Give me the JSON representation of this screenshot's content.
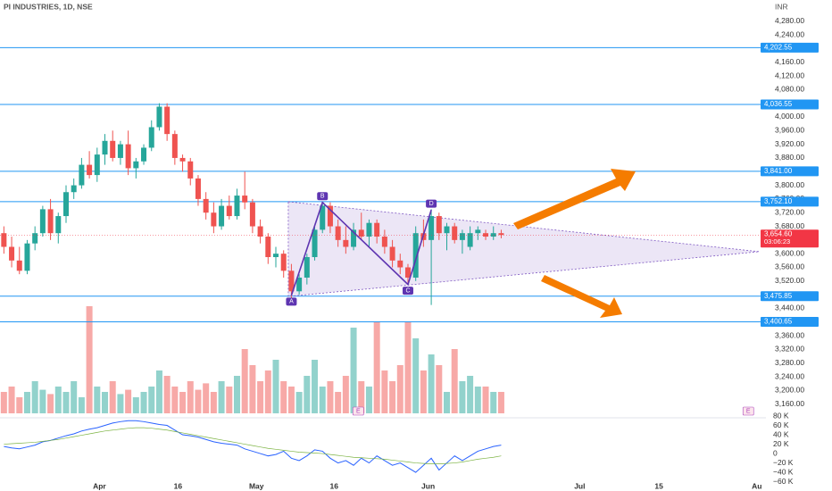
{
  "header": {
    "title": "PI INDUSTRIES, 1D, NSE",
    "currency": "INR"
  },
  "chart_data": {
    "type": "candlestick",
    "up_color": "#26a69a",
    "down_color": "#ef5350",
    "xlim": [
      -0.5,
      98.3
    ],
    "ylim": [
      3120,
      4342
    ],
    "xticks": [
      {
        "value": 12.3,
        "label": "Apr"
      },
      {
        "value": 22.4,
        "label": "16"
      },
      {
        "value": 32.5,
        "label": "May"
      },
      {
        "value": 42.5,
        "label": "16"
      },
      {
        "value": 54.6,
        "label": "Jun"
      },
      {
        "value": 74.1,
        "label": "Jul"
      },
      {
        "value": 84.3,
        "label": "15"
      },
      {
        "value": 96.9,
        "label": "Au"
      }
    ],
    "yticks": [
      {
        "value": 4280,
        "label": "4,280.00"
      },
      {
        "value": 4240,
        "label": "4,240.00"
      },
      {
        "value": 4160,
        "label": "4,160.00"
      },
      {
        "value": 4120,
        "label": "4,120.00"
      },
      {
        "value": 4080,
        "label": "4,080.00"
      },
      {
        "value": 4000,
        "label": "4,000.00"
      },
      {
        "value": 3960,
        "label": "3,960.00"
      },
      {
        "value": 3920,
        "label": "3,920.00"
      },
      {
        "value": 3880,
        "label": "3,880.00"
      },
      {
        "value": 3800,
        "label": "3,800.00"
      },
      {
        "value": 3760,
        "label": "3,760.00"
      },
      {
        "value": 3720,
        "label": "3,720.00"
      },
      {
        "value": 3680,
        "label": "3,680.00"
      },
      {
        "value": 3600,
        "label": "3,600.00"
      },
      {
        "value": 3560,
        "label": "3,560.00"
      },
      {
        "value": 3520,
        "label": "3,520.00"
      },
      {
        "value": 3440,
        "label": "3,440.00"
      },
      {
        "value": 3360,
        "label": "3,360.00"
      },
      {
        "value": 3320,
        "label": "3,320.00"
      },
      {
        "value": 3280,
        "label": "3,280.00"
      },
      {
        "value": 3240,
        "label": "3,240.00"
      },
      {
        "value": 3200,
        "label": "3,200.00"
      },
      {
        "value": 3160,
        "label": "3,160.00"
      }
    ],
    "levels": [
      {
        "value": 4202.55,
        "label": "4,202.55"
      },
      {
        "value": 4036.55,
        "label": "4,036.55"
      },
      {
        "value": 3841.0,
        "label": "3,841.00"
      },
      {
        "value": 3752.1,
        "label": "3,752.10"
      },
      {
        "value": 3475.85,
        "label": "3,475.85"
      },
      {
        "value": 3400.65,
        "label": "3,400.65"
      }
    ],
    "level_color": "#2196f3",
    "last": {
      "value": 3654.6,
      "label": "3,654.60",
      "countdown": "03:06:23",
      "color": "#f23645"
    },
    "x": [
      0,
      1,
      2,
      3,
      4,
      5,
      6,
      7,
      8,
      9,
      10,
      11,
      12,
      13,
      14,
      15,
      16,
      17,
      18,
      19,
      20,
      21,
      22,
      23,
      24,
      25,
      26,
      27,
      28,
      29,
      30,
      31,
      32,
      33,
      34,
      35,
      36,
      37,
      38,
      39,
      40,
      41,
      42,
      43,
      44,
      45,
      46,
      47,
      48,
      49,
      50,
      51,
      52,
      53,
      54,
      55,
      56,
      57,
      58,
      59,
      60,
      61,
      62,
      63,
      64
    ],
    "ohlc": [
      [
        3660,
        3680,
        3600,
        3620
      ],
      [
        3620,
        3650,
        3560,
        3580
      ],
      [
        3580,
        3620,
        3540,
        3550
      ],
      [
        3550,
        3640,
        3540,
        3630
      ],
      [
        3630,
        3680,
        3610,
        3660
      ],
      [
        3660,
        3740,
        3650,
        3730
      ],
      [
        3730,
        3760,
        3640,
        3660
      ],
      [
        3660,
        3720,
        3630,
        3710
      ],
      [
        3710,
        3800,
        3690,
        3780
      ],
      [
        3780,
        3820,
        3760,
        3800
      ],
      [
        3800,
        3880,
        3790,
        3860
      ],
      [
        3860,
        3900,
        3820,
        3830
      ],
      [
        3830,
        3910,
        3810,
        3890
      ],
      [
        3890,
        3950,
        3860,
        3930
      ],
      [
        3930,
        3960,
        3870,
        3880
      ],
      [
        3880,
        3930,
        3860,
        3920
      ],
      [
        3920,
        3960,
        3830,
        3850
      ],
      [
        3850,
        3880,
        3820,
        3870
      ],
      [
        3870,
        3920,
        3860,
        3910
      ],
      [
        3910,
        3990,
        3900,
        3970
      ],
      [
        3970,
        4040,
        3960,
        4030
      ],
      [
        4030,
        4040,
        3930,
        3950
      ],
      [
        3950,
        3960,
        3860,
        3880
      ],
      [
        3880,
        3890,
        3840,
        3870
      ],
      [
        3870,
        3880,
        3800,
        3820
      ],
      [
        3820,
        3830,
        3740,
        3760
      ],
      [
        3760,
        3780,
        3700,
        3720
      ],
      [
        3720,
        3750,
        3660,
        3680
      ],
      [
        3680,
        3760,
        3670,
        3740
      ],
      [
        3740,
        3770,
        3700,
        3710
      ],
      [
        3710,
        3790,
        3700,
        3770
      ],
      [
        3770,
        3840,
        3730,
        3750
      ],
      [
        3750,
        3760,
        3660,
        3680
      ],
      [
        3680,
        3700,
        3630,
        3650
      ],
      [
        3650,
        3660,
        3570,
        3590
      ],
      [
        3590,
        3620,
        3560,
        3600
      ],
      [
        3600,
        3610,
        3530,
        3550
      ],
      [
        3550,
        3570,
        3470,
        3490
      ],
      [
        3490,
        3540,
        3480,
        3530
      ],
      [
        3530,
        3600,
        3510,
        3590
      ],
      [
        3590,
        3680,
        3580,
        3670
      ],
      [
        3670,
        3750,
        3660,
        3740
      ],
      [
        3740,
        3750,
        3660,
        3680
      ],
      [
        3680,
        3700,
        3620,
        3640
      ],
      [
        3640,
        3680,
        3600,
        3620
      ],
      [
        3620,
        3690,
        3610,
        3670
      ],
      [
        3670,
        3720,
        3640,
        3650
      ],
      [
        3650,
        3700,
        3620,
        3690
      ],
      [
        3690,
        3700,
        3630,
        3650
      ],
      [
        3650,
        3670,
        3600,
        3620
      ],
      [
        3620,
        3640,
        3560,
        3580
      ],
      [
        3580,
        3600,
        3540,
        3560
      ],
      [
        3560,
        3570,
        3510,
        3530
      ],
      [
        3530,
        3680,
        3520,
        3660
      ],
      [
        3660,
        3700,
        3620,
        3640
      ],
      [
        3640,
        3730,
        3450,
        3710
      ],
      [
        3710,
        3720,
        3640,
        3660
      ],
      [
        3660,
        3690,
        3610,
        3680
      ],
      [
        3680,
        3690,
        3630,
        3640
      ],
      [
        3640,
        3670,
        3600,
        3660
      ],
      [
        3620,
        3680,
        3610,
        3660
      ],
      [
        3660,
        3680,
        3640,
        3670
      ],
      [
        3660,
        3670,
        3640,
        3650
      ],
      [
        3650,
        3680,
        3640,
        3660
      ],
      [
        3660,
        3670,
        3645,
        3654.6
      ]
    ],
    "volume": [
      20,
      25,
      15,
      20,
      30,
      22,
      18,
      25,
      20,
      30,
      15,
      100,
      25,
      20,
      30,
      18,
      22,
      15,
      20,
      25,
      40,
      35,
      25,
      20,
      30,
      22,
      28,
      20,
      30,
      25,
      35,
      60,
      45,
      30,
      40,
      50,
      30,
      25,
      20,
      35,
      50,
      25,
      30,
      20,
      35,
      80,
      30,
      25,
      85,
      40,
      30,
      45,
      85,
      70,
      40,
      55,
      45,
      20,
      60,
      30,
      35,
      25,
      25,
      20,
      20
    ],
    "volume_lim": [
      0,
      100
    ],
    "osc_lim": [
      -76000,
      80000
    ],
    "osc_ticks": [
      {
        "value": 80000,
        "label": "80 K"
      },
      {
        "value": 60000,
        "label": "60 K"
      },
      {
        "value": 40000,
        "label": "40 K"
      },
      {
        "value": 20000,
        "label": "20 K"
      },
      0,
      {
        "value": -20000,
        "label": "−20 K"
      },
      {
        "value": -40000,
        "label": "−40 K"
      },
      {
        "value": -60000,
        "label": "−60 K"
      }
    ],
    "oscillator": [
      {
        "color": "#2962ff",
        "values": [
          15000,
          12000,
          10000,
          14000,
          18000,
          25000,
          28000,
          33000,
          38000,
          42000,
          48000,
          52000,
          55000,
          60000,
          65000,
          68000,
          70000,
          70000,
          68000,
          65000,
          62000,
          60000,
          50000,
          40000,
          38000,
          35000,
          30000,
          25000,
          22000,
          20000,
          18000,
          10000,
          5000,
          0,
          -5000,
          -2000,
          5000,
          -10000,
          -15000,
          -5000,
          8000,
          5000,
          -10000,
          -20000,
          -15000,
          -25000,
          -10000,
          -20000,
          -5000,
          -15000,
          -25000,
          -20000,
          -30000,
          -40000,
          -25000,
          -10000,
          -35000,
          -20000,
          -5000,
          -15000,
          -5000,
          5000,
          10000,
          15000,
          18000
        ]
      },
      {
        "color": "#7cb342",
        "values": [
          20000,
          21000,
          22000,
          23000,
          24000,
          26000,
          28000,
          30000,
          33000,
          36000,
          39000,
          42000,
          45000,
          48000,
          50000,
          52000,
          54000,
          55000,
          55000,
          54000,
          52000,
          50000,
          47000,
          44000,
          41000,
          38000,
          35000,
          32000,
          29000,
          26000,
          23000,
          20000,
          17000,
          14000,
          11000,
          9000,
          7000,
          5000,
          3000,
          2000,
          1000,
          0,
          -2000,
          -4000,
          -6000,
          -8000,
          -9000,
          -10000,
          -11000,
          -12000,
          -14000,
          -16000,
          -18000,
          -20000,
          -21000,
          -22000,
          -22000,
          -21000,
          -20000,
          -18000,
          -15000,
          -12000,
          -10000,
          -8000,
          -5000
        ]
      }
    ],
    "triangle": {
      "x": [
        36.6,
        97.2
      ],
      "upper": [
        3752,
        3606
      ],
      "lower": [
        3475,
        3606
      ],
      "color": "#7e57c2"
    },
    "pattern": {
      "labels": [
        "A",
        "B",
        "C",
        "D"
      ],
      "x": [
        37,
        41,
        52,
        55
      ],
      "y": [
        3478,
        3750,
        3510,
        3728
      ],
      "color": "#5e35b1"
    },
    "events": {
      "x": [
        45.6,
        95.8
      ],
      "labels": [
        "E",
        "E"
      ]
    }
  }
}
